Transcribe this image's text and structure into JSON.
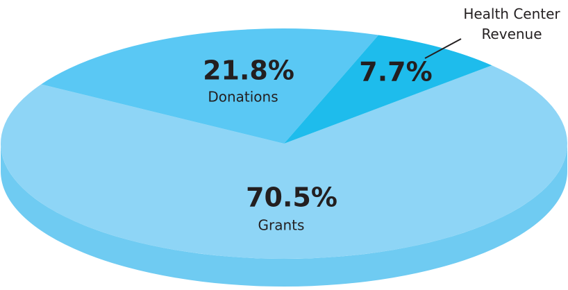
{
  "chart_data": {
    "type": "pie3d",
    "categories": [
      "Grants",
      "Donations",
      "Health Center Revenue"
    ],
    "values": [
      70.5,
      21.8,
      7.7
    ],
    "value_labels": [
      "70.5%",
      "21.8%",
      "7.7%"
    ],
    "colors": [
      "#8ed5f6",
      "#5ac8f4",
      "#1ebcec"
    ]
  }
}
